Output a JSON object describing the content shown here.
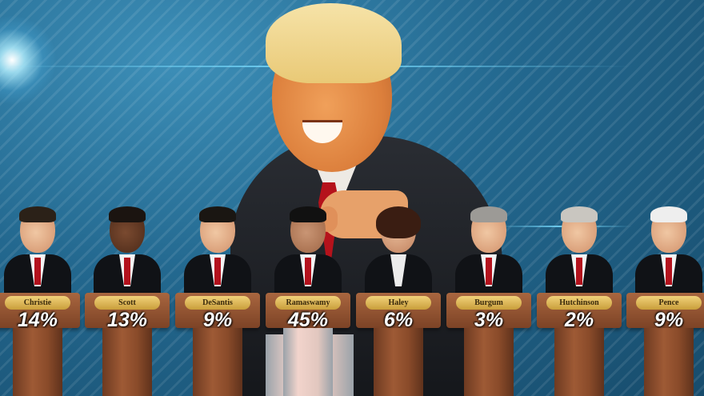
{
  "candidates": [
    {
      "name": "Christie",
      "percent": "14%"
    },
    {
      "name": "Scott",
      "percent": "13%"
    },
    {
      "name": "DeSantis",
      "percent": "9%"
    },
    {
      "name": "Ramaswamy",
      "percent": "45%"
    },
    {
      "name": "Haley",
      "percent": "6%"
    },
    {
      "name": "Burgum",
      "percent": "3%"
    },
    {
      "name": "Hutchinson",
      "percent": "2%"
    },
    {
      "name": "Pence",
      "percent": "9%"
    }
  ],
  "colors": {
    "background": "#23688f",
    "podium_wood": "#8a4b2a",
    "nameplate_gold": "#e0bb5a",
    "suit": "#1c1e22",
    "tie": "#b5121b"
  }
}
